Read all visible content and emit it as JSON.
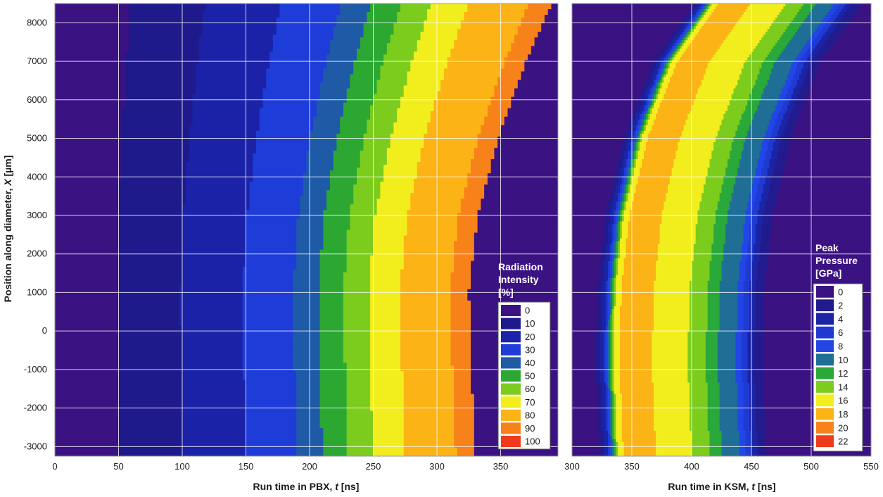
{
  "chart_data": [
    {
      "type": "heatmap",
      "title": "",
      "xlabel_prefix": "Run time in PBX, ",
      "xlabel_var": "t",
      "xlabel_suffix": " [ns]",
      "ylabel_prefix": "Position along diameter, ",
      "ylabel_var": "X",
      "ylabel_suffix": " [µm]",
      "xlim": [
        0,
        395
      ],
      "ylim": [
        -3250,
        8500
      ],
      "xticks": [
        0,
        50,
        100,
        150,
        200,
        250,
        300,
        350
      ],
      "yticks": [
        -3000,
        -2000,
        -1000,
        0,
        1000,
        2000,
        3000,
        4000,
        5000,
        6000,
        7000,
        8000
      ],
      "grid": true,
      "legend_title": [
        "Radiation",
        "Intensity",
        "[%]"
      ],
      "legend_position": "bottom-right",
      "levels": [
        0,
        10,
        20,
        30,
        40,
        50,
        60,
        70,
        80,
        90,
        100
      ],
      "level_colors": [
        "#3a1282",
        "#1f1a8c",
        "#1b22a8",
        "#1e3cd8",
        "#1f5aa6",
        "#2ca832",
        "#7ccc1e",
        "#f2ee1e",
        "#fbb316",
        "#f8821a",
        "#f03a1c"
      ],
      "profile_t": [
        0,
        50,
        100,
        150,
        190,
        230,
        260,
        290,
        315,
        330,
        345
      ],
      "profile_values": [
        0,
        10,
        20,
        30,
        40,
        60,
        75,
        85,
        90,
        100,
        0
      ],
      "front_t_at_y": [
        {
          "y": 8500,
          "t": 390
        },
        {
          "y": 7000,
          "t": 370
        },
        {
          "y": 5000,
          "t": 348
        },
        {
          "y": 3000,
          "t": 332
        },
        {
          "y": 1000,
          "t": 325
        },
        {
          "y": -1000,
          "t": 327
        },
        {
          "y": -3250,
          "t": 330
        }
      ]
    },
    {
      "type": "heatmap",
      "title": "",
      "xlabel_prefix": "Run time in KSM, ",
      "xlabel_var": "t",
      "xlabel_suffix": " [ns]",
      "xlim": [
        300,
        550
      ],
      "ylim": [
        -3250,
        8500
      ],
      "xticks": [
        300,
        350,
        400,
        450,
        500,
        550
      ],
      "yticks": [
        -3000,
        -2000,
        -1000,
        0,
        1000,
        2000,
        3000,
        4000,
        5000,
        6000,
        7000,
        8000
      ],
      "grid": true,
      "legend_title": [
        "Peak",
        "Pressure",
        "[GPa]"
      ],
      "legend_position": "bottom-right",
      "levels": [
        0,
        2,
        4,
        6,
        8,
        10,
        12,
        14,
        16,
        18,
        20,
        22
      ],
      "level_colors": [
        "#3a1282",
        "#221b8e",
        "#1a24a4",
        "#1f3ad2",
        "#2246e6",
        "#1f6e96",
        "#2aa83a",
        "#7ccc1e",
        "#f2ee1e",
        "#fbb316",
        "#f8821a",
        "#f03a1c"
      ],
      "profile_offset_ns": [
        -10,
        0,
        8,
        18,
        40,
        70,
        85,
        95,
        110,
        125,
        140
      ],
      "profile_values": [
        0,
        6,
        16,
        20,
        18,
        16,
        14,
        12,
        10,
        4,
        0
      ],
      "front_t_at_y": [
        {
          "y": 8500,
          "t": 410
        },
        {
          "y": 7000,
          "t": 375
        },
        {
          "y": 5000,
          "t": 350
        },
        {
          "y": 3000,
          "t": 335
        },
        {
          "y": 1000,
          "t": 328
        },
        {
          "y": -1000,
          "t": 327
        },
        {
          "y": -3250,
          "t": 330
        }
      ]
    }
  ]
}
